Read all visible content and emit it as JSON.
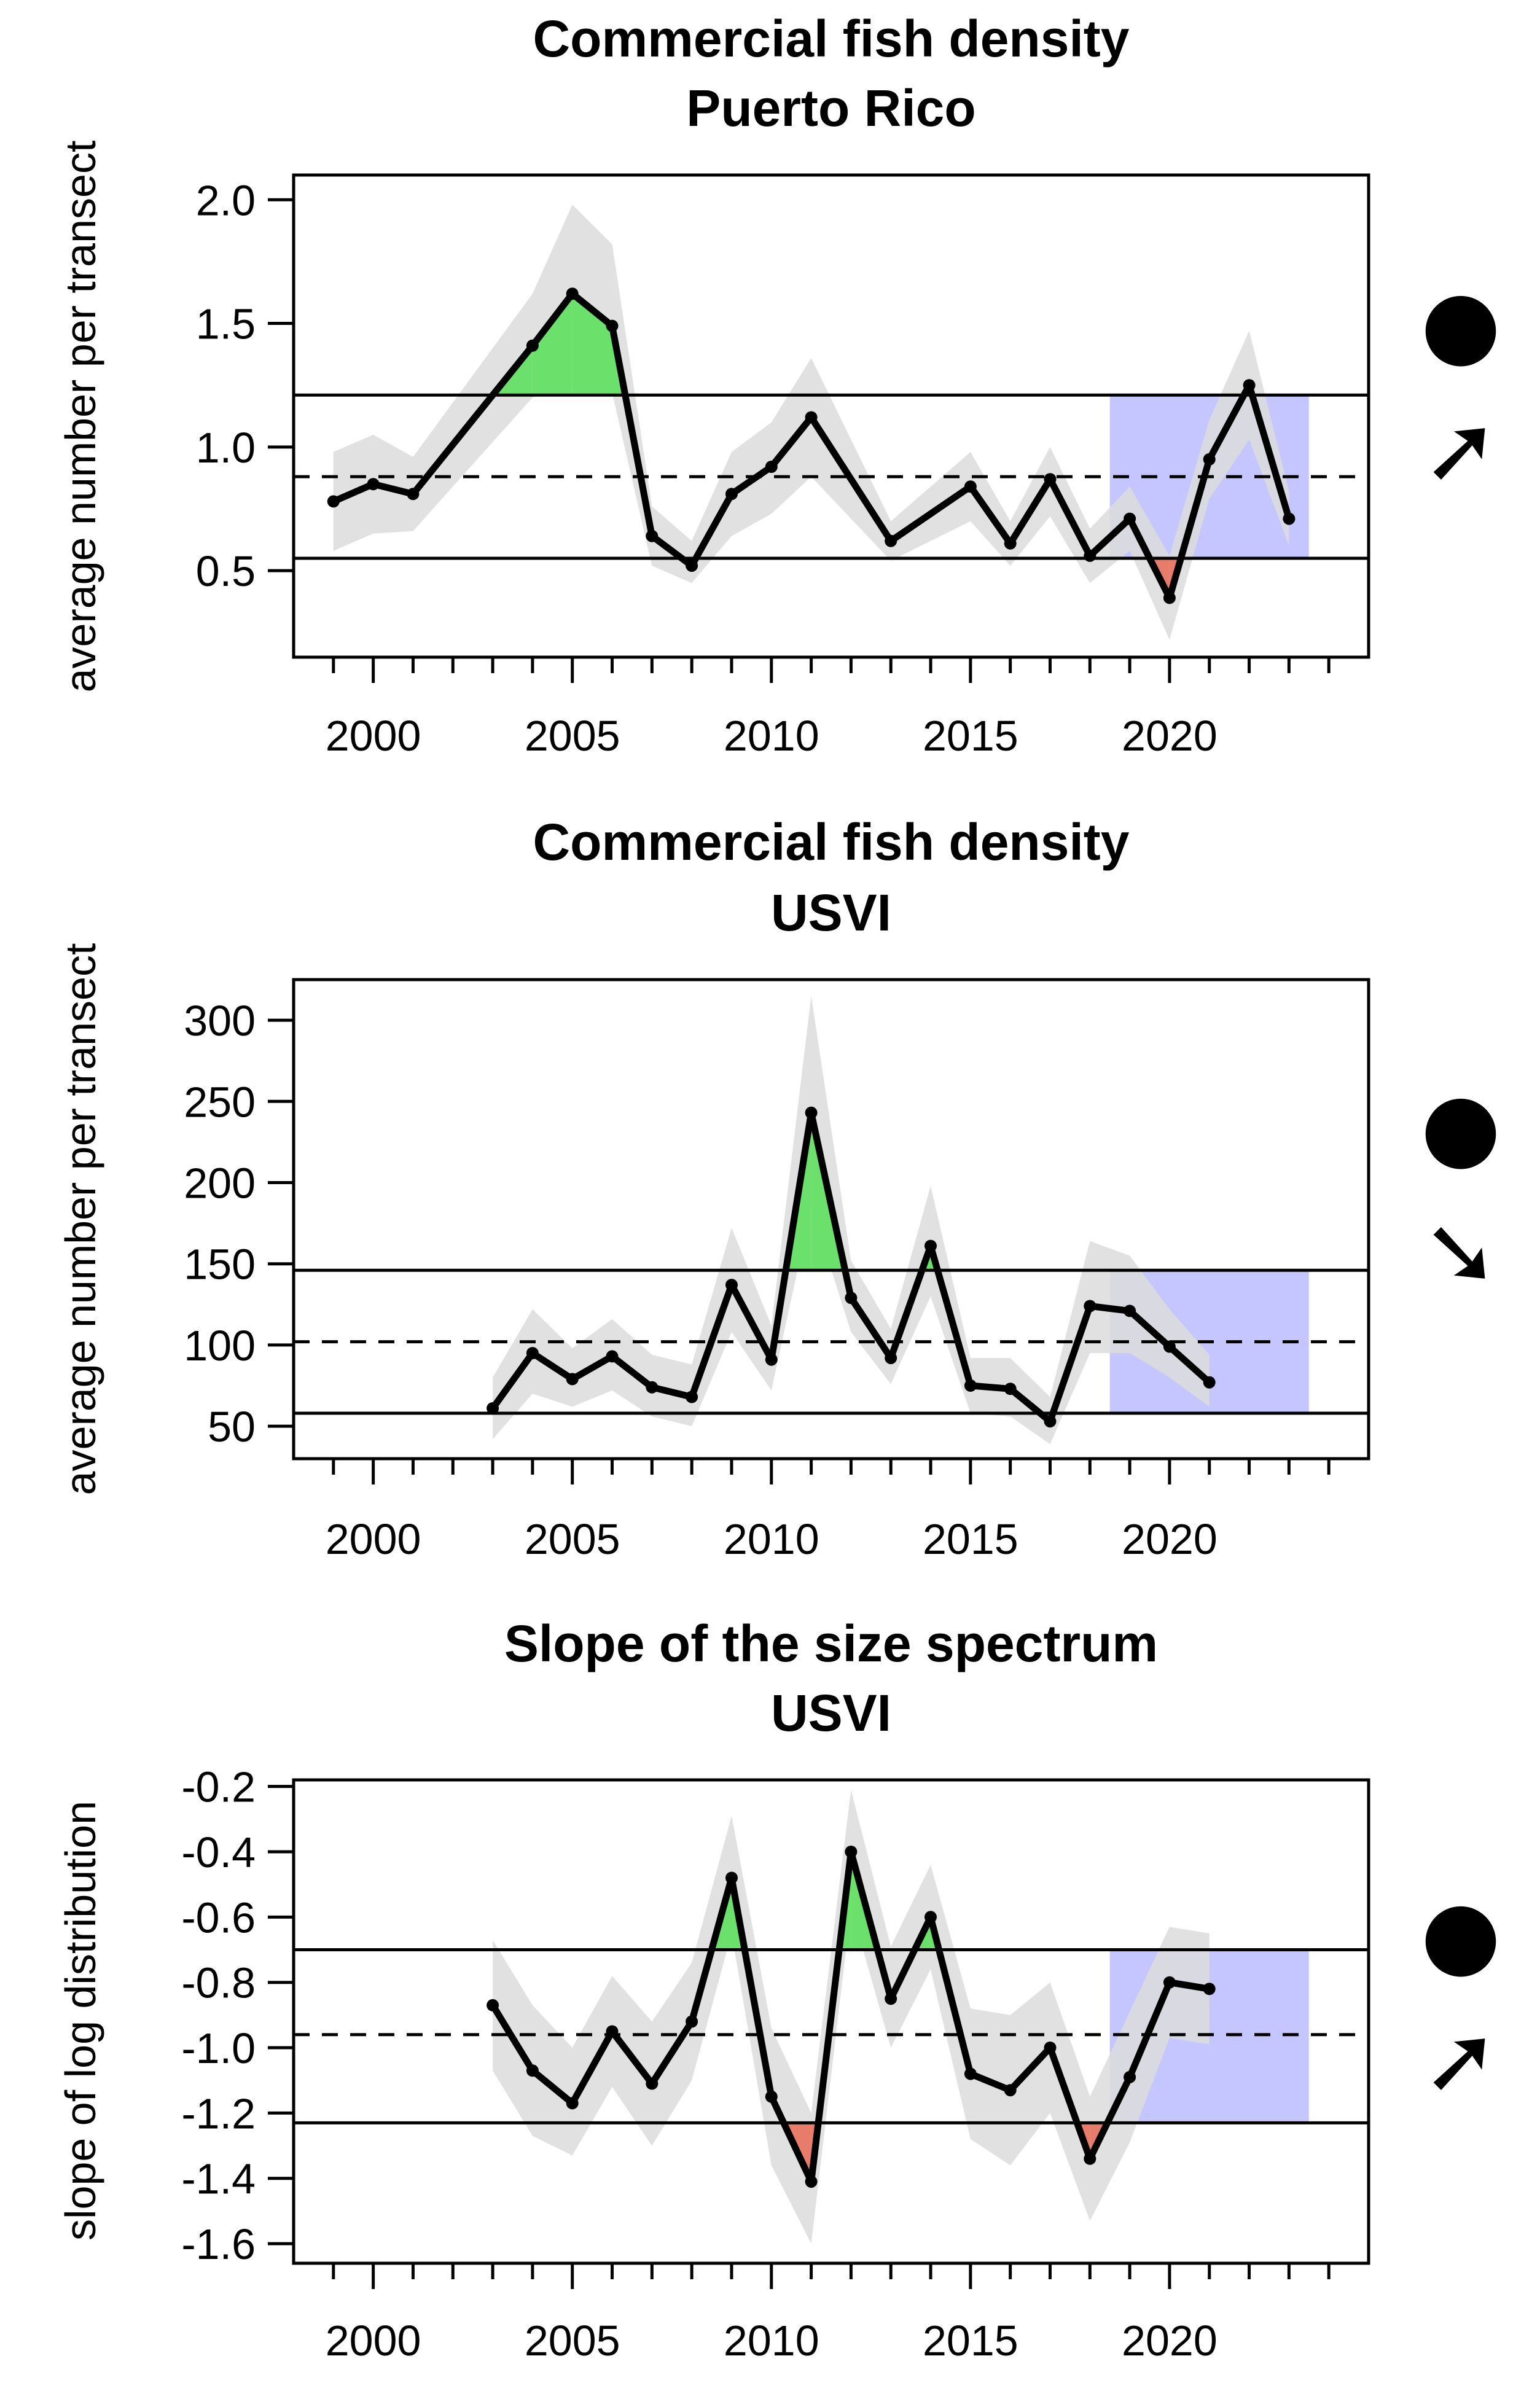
{
  "chart_data": [
    {
      "type": "line",
      "title": "Commercial fish density",
      "subtitle": "Puerto Rico",
      "xlabel": "",
      "ylabel": "average number per transect",
      "xlim": [
        1998,
        2025
      ],
      "ylim": [
        0.15,
        2.1
      ],
      "xticks": [
        2000,
        2005,
        2010,
        2015,
        2020
      ],
      "yticks": [
        0.5,
        1.0,
        1.5,
        2.0
      ],
      "ytick_labels": [
        "0.5",
        "1.0",
        "1.5",
        "2.0"
      ],
      "mean": 0.88,
      "upper_sd": 1.21,
      "lower_sd": 0.55,
      "recent_window": [
        2018.5,
        2023.5
      ],
      "x": [
        1999,
        2000,
        2001,
        2004,
        2005,
        2006,
        2007,
        2008,
        2009,
        2010,
        2011,
        2013,
        2015,
        2016,
        2017,
        2018,
        2019,
        2020,
        2021,
        2022,
        2023
      ],
      "series": [
        {
          "values": [
            0.78,
            0.85,
            0.81,
            1.41,
            1.62,
            1.49,
            0.64,
            0.52,
            0.81,
            0.92,
            1.12,
            0.62,
            0.84,
            0.61,
            0.87,
            0.56,
            0.71,
            0.39,
            0.95,
            1.25,
            0.71
          ],
          "lower": [
            0.58,
            0.65,
            0.66,
            1.2,
            1.25,
            1.22,
            0.52,
            0.45,
            0.64,
            0.73,
            0.88,
            0.54,
            0.7,
            0.52,
            0.72,
            0.45,
            0.58,
            0.22,
            0.79,
            1.03,
            0.6
          ],
          "upper": [
            0.98,
            1.05,
            0.96,
            1.62,
            1.98,
            1.82,
            0.76,
            0.62,
            0.98,
            1.1,
            1.36,
            0.7,
            0.98,
            0.7,
            1.0,
            0.67,
            0.84,
            0.56,
            1.11,
            1.47,
            0.82
          ]
        }
      ],
      "trend_indicators": {
        "mean_symbol": "●",
        "trend_symbol": "➚"
      },
      "colors": {
        "above": "#6be06b",
        "below": "#e87c6a",
        "recent": "#c5c5ff",
        "band": "#dcdcdc",
        "line": "#000000"
      }
    },
    {
      "type": "line",
      "title": "Commercial fish density",
      "subtitle": "USVI",
      "xlabel": "",
      "ylabel": "average number per transect",
      "xlim": [
        1998,
        2025
      ],
      "ylim": [
        30,
        325
      ],
      "xticks": [
        2000,
        2005,
        2010,
        2015,
        2020
      ],
      "yticks": [
        50,
        100,
        150,
        200,
        250,
        300
      ],
      "ytick_labels": [
        "50",
        "100",
        "150",
        "200",
        "250",
        "300"
      ],
      "mean": 102,
      "upper_sd": 146,
      "lower_sd": 58,
      "recent_window": [
        2018.5,
        2023.5
      ],
      "x": [
        2003,
        2004,
        2005,
        2006,
        2007,
        2008,
        2009,
        2010,
        2011,
        2012,
        2013,
        2014,
        2015,
        2016,
        2017,
        2018,
        2019,
        2020,
        2021
      ],
      "series": [
        {
          "values": [
            61,
            95,
            79,
            93,
            74,
            68,
            137,
            91,
            243,
            129,
            92,
            161,
            75,
            73,
            53,
            124,
            121,
            99,
            77
          ],
          "lower": [
            42,
            70,
            62,
            72,
            56,
            50,
            108,
            72,
            185,
            108,
            76,
            130,
            58,
            56,
            39,
            95,
            95,
            80,
            62
          ],
          "upper": [
            80,
            122,
            98,
            116,
            94,
            88,
            172,
            112,
            315,
            152,
            110,
            198,
            92,
            92,
            68,
            164,
            155,
            122,
            94
          ]
        }
      ],
      "trend_indicators": {
        "mean_symbol": "●",
        "trend_symbol": "➘"
      },
      "colors": {
        "above": "#6be06b",
        "below": "#e87c6a",
        "recent": "#c5c5ff",
        "band": "#dcdcdc",
        "line": "#000000"
      }
    },
    {
      "type": "line",
      "title": "Slope of the size spectrum",
      "subtitle": "USVI",
      "xlabel": "",
      "ylabel": "slope of log distribution",
      "xlim": [
        1998,
        2025
      ],
      "ylim": [
        -1.66,
        -0.18
      ],
      "xticks": [
        2000,
        2005,
        2010,
        2015,
        2020
      ],
      "yticks": [
        -1.6,
        -1.4,
        -1.2,
        -1.0,
        -0.8,
        -0.6,
        -0.4,
        -0.2
      ],
      "ytick_labels": [
        "-1.6",
        "-1.4",
        "-1.2",
        "-1.0",
        "-0.8",
        "-0.6",
        "-0.4",
        "-0.2"
      ],
      "mean": -0.96,
      "upper_sd": -0.7,
      "lower_sd": -1.23,
      "recent_window": [
        2018.5,
        2023.5
      ],
      "x": [
        2003,
        2004,
        2005,
        2006,
        2007,
        2008,
        2009,
        2010,
        2011,
        2012,
        2013,
        2014,
        2015,
        2016,
        2017,
        2018,
        2019,
        2020,
        2021
      ],
      "series": [
        {
          "values": [
            -0.87,
            -1.07,
            -1.17,
            -0.95,
            -1.11,
            -0.92,
            -0.48,
            -1.15,
            -1.41,
            -0.4,
            -0.85,
            -0.6,
            -1.08,
            -1.13,
            -1.0,
            -1.34,
            -1.09,
            -0.8,
            -0.82
          ],
          "lower": [
            -1.07,
            -1.27,
            -1.33,
            -1.12,
            -1.3,
            -1.1,
            -0.65,
            -1.36,
            -1.6,
            -0.57,
            -1.0,
            -0.76,
            -1.28,
            -1.36,
            -1.2,
            -1.53,
            -1.29,
            -0.97,
            -0.99
          ],
          "upper": [
            -0.67,
            -0.87,
            -1.0,
            -0.78,
            -0.92,
            -0.74,
            -0.29,
            -0.94,
            -1.2,
            -0.21,
            -0.69,
            -0.44,
            -0.88,
            -0.9,
            -0.8,
            -1.15,
            -0.89,
            -0.63,
            -0.65
          ]
        }
      ],
      "trend_indicators": {
        "mean_symbol": "●",
        "trend_symbol": "➚"
      },
      "colors": {
        "above": "#6be06b",
        "below": "#e87c6a",
        "recent": "#c5c5ff",
        "band": "#dcdcdc",
        "line": "#000000"
      }
    }
  ]
}
